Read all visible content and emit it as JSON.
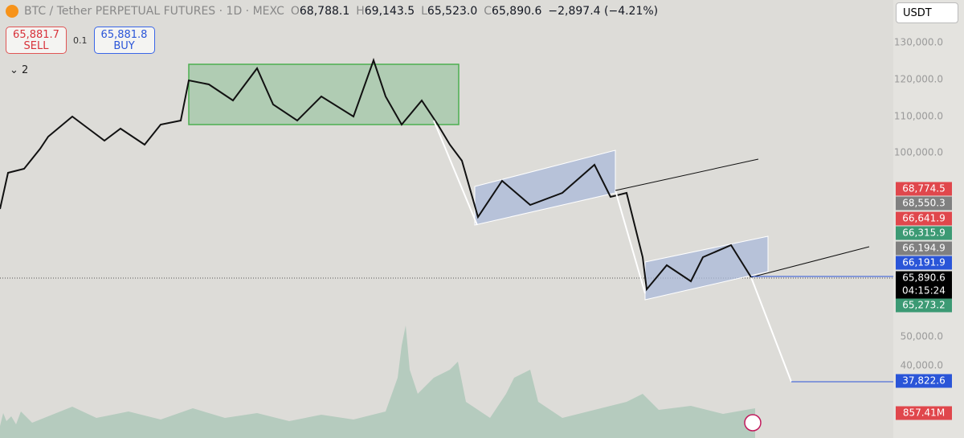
{
  "header": {
    "symbol": "BTC / Tether PERPETUAL FUTURES · 1D · MEXC",
    "ohlc": [
      {
        "key": "O",
        "value": "68,788.1"
      },
      {
        "key": "H",
        "value": "69,143.5"
      },
      {
        "key": "L",
        "value": "65,523.0"
      },
      {
        "key": "C",
        "value": "65,890.6"
      }
    ],
    "change": "−2,897.4 (−4.21%)"
  },
  "trade": {
    "sell_price": "65,881.7",
    "sell_label": "SELL",
    "quantity": "0.1",
    "buy_price": "65,881.8",
    "buy_label": "BUY"
  },
  "indicators": "2",
  "currency": "USDT",
  "axis_labels": [
    "130,000.0",
    "120,000.0",
    "110,000.0",
    "100,000.0",
    "50,000.0",
    "40,000.0"
  ],
  "price_tags": [
    {
      "text": "68,774.5",
      "color": "#e0474c"
    },
    {
      "text": "68,550.3",
      "color": "#808080"
    },
    {
      "text": "66,641.9",
      "color": "#e0474c"
    },
    {
      "text": "66,315.9",
      "color": "#3c9a74"
    },
    {
      "text": "66,194.9",
      "color": "#808080"
    },
    {
      "text": "66,191.9",
      "color": "#2a55d8"
    },
    {
      "text": "65,890.6",
      "sub": "04:15:24",
      "color": "#000000"
    },
    {
      "text": "65,273.2",
      "color": "#3c9a74"
    },
    {
      "text": "37,822.6",
      "color": "#2a55d8"
    },
    {
      "text": "857.41M",
      "color": "#e0474c"
    }
  ]
}
